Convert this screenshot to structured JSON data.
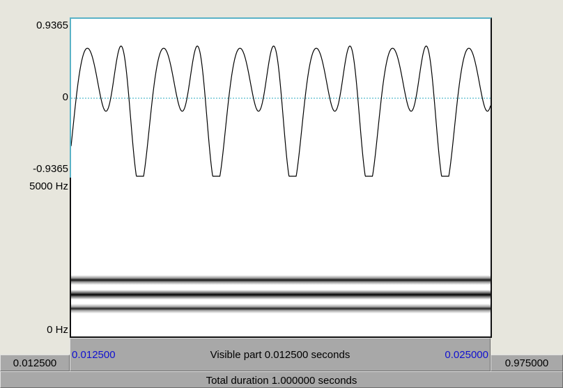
{
  "waveform": {
    "y_max_label": "0.9365",
    "y_zero_label": "0",
    "y_min_label": "-0.9365",
    "colors": {
      "trace": "#000000",
      "zero_line": "#2aa9bf"
    }
  },
  "spectrogram": {
    "f_max_label": "5000 Hz",
    "f_min_label": "0 Hz"
  },
  "time_bar": {
    "left_outside_value": "0.012500",
    "visible_start": "0.012500",
    "visible_part_text": "Visible part 0.012500 seconds",
    "visible_end": "0.025000",
    "right_outside_value": "0.975000",
    "total_duration_text": "Total duration 1.000000 seconds"
  }
}
